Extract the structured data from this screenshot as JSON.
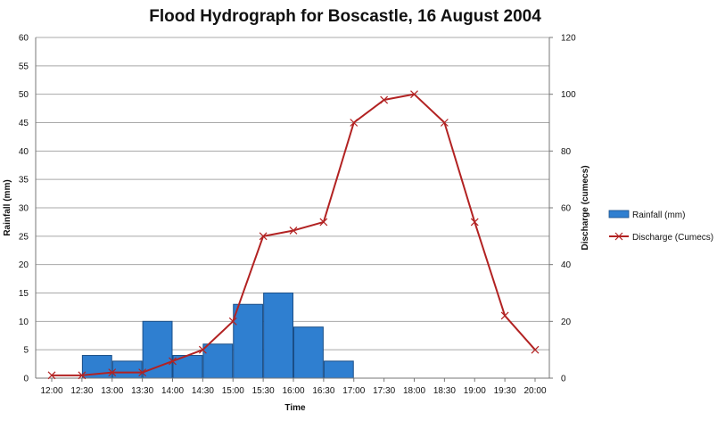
{
  "chart_data": {
    "type": "bar+line",
    "title": "Flood Hydrograph for Boscastle, 16 August 2004",
    "xlabel": "Time",
    "ylabel_left": "Rainfall (mm)",
    "ylabel_right": "Discharge (cumecs)",
    "categories": [
      "12:00",
      "12:30",
      "13:00",
      "13:30",
      "14:00",
      "14:30",
      "15:00",
      "15:30",
      "16:00",
      "16:30",
      "17:00",
      "17:30",
      "18:00",
      "18:30",
      "19:00",
      "19:30",
      "20:00"
    ],
    "y_left_lim": [
      0,
      60
    ],
    "y_left_ticks": [
      0,
      5,
      10,
      15,
      20,
      25,
      30,
      35,
      40,
      45,
      50,
      55,
      60
    ],
    "y_right_lim": [
      0,
      120
    ],
    "y_right_ticks": [
      0,
      20,
      40,
      60,
      80,
      100,
      120
    ],
    "grid": true,
    "legend_position": "right",
    "series": [
      {
        "name": "Rainfall (mm)",
        "type": "bar",
        "axis": "left",
        "color": "#2f7fd0",
        "bins": [
          {
            "start": "12:30",
            "end": "13:00",
            "value": 4
          },
          {
            "start": "13:00",
            "end": "13:30",
            "value": 3
          },
          {
            "start": "13:30",
            "end": "14:00",
            "value": 10
          },
          {
            "start": "14:00",
            "end": "14:30",
            "value": 4
          },
          {
            "start": "14:30",
            "end": "15:00",
            "value": 6
          },
          {
            "start": "15:00",
            "end": "15:30",
            "value": 13
          },
          {
            "start": "15:30",
            "end": "16:00",
            "value": 15
          },
          {
            "start": "16:00",
            "end": "16:30",
            "value": 9
          },
          {
            "start": "16:30",
            "end": "17:00",
            "value": 3
          }
        ]
      },
      {
        "name": "Discharge (Cumecs)",
        "type": "line",
        "axis": "right",
        "color": "#b22222",
        "values": [
          1,
          1,
          2,
          2,
          6,
          10,
          20,
          50,
          52,
          55,
          90,
          98,
          100,
          90,
          55,
          22,
          10
        ]
      }
    ]
  }
}
